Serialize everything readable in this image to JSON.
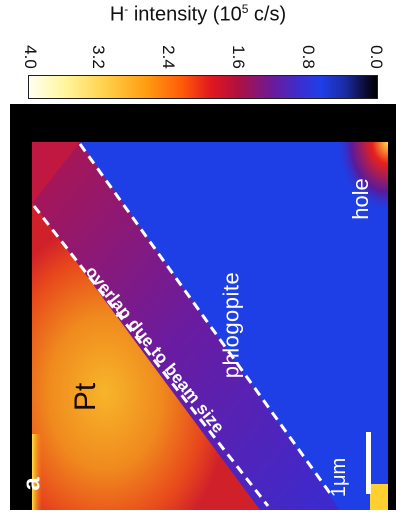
{
  "colorbar": {
    "title_main": "H",
    "title_sup": "-",
    "title_rest": " intensity (10",
    "title_exp": "5",
    "title_unit": " c/s)",
    "ticks": [
      "4.0",
      "3.2",
      "2.4",
      "1.6",
      "0.8",
      "0.0"
    ],
    "range": [
      4.0,
      0.0
    ]
  },
  "image": {
    "panel_letter": "a",
    "label_pt": "Pt",
    "label_phlogopite": "phlogopite",
    "label_hole": "hole",
    "label_overlap": "overlap due to beam size",
    "scale_bar_label": "1μm"
  },
  "colors": {
    "pt_region": "#e8341c",
    "pt_core": "#f5a520",
    "phlogopite": "#1e3fe6",
    "frame": "#000000",
    "dashed_line": "#ffffff"
  }
}
